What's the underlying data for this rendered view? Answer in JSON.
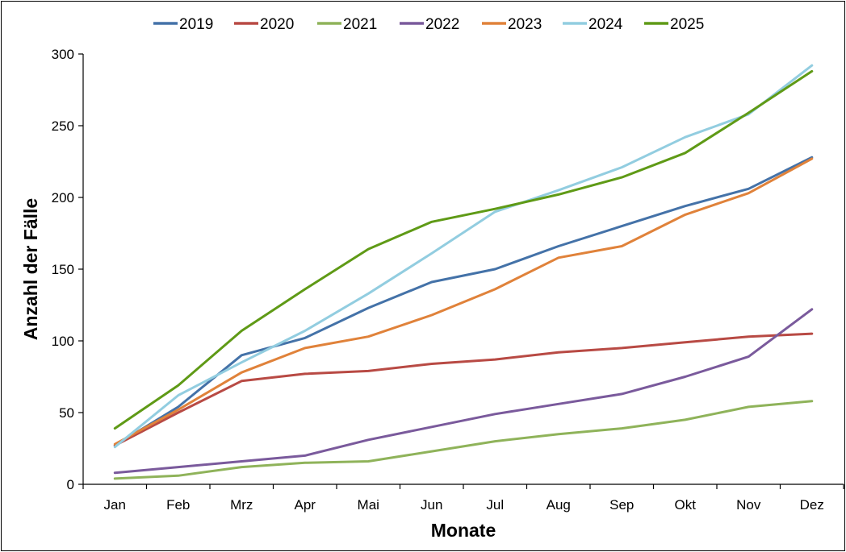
{
  "chart_data": {
    "type": "line",
    "title": "",
    "xlabel": "Monate",
    "ylabel": "Anzahl der Fälle",
    "ylim": [
      0,
      300
    ],
    "yticks": [
      0,
      50,
      100,
      150,
      200,
      250,
      300
    ],
    "grid": false,
    "legend_position": "top",
    "categories": [
      "Jan",
      "Feb",
      "Mrz",
      "Apr",
      "Mai",
      "Jun",
      "Jul",
      "Aug",
      "Sep",
      "Okt",
      "Nov",
      "Dez"
    ],
    "series": [
      {
        "name": "2019",
        "color": "#4472a8",
        "values": [
          27,
          54,
          90,
          102,
          123,
          141,
          150,
          166,
          180,
          194,
          206,
          228
        ]
      },
      {
        "name": "2020",
        "color": "#b84a44",
        "values": [
          27,
          50,
          72,
          77,
          79,
          84,
          87,
          92,
          95,
          99,
          103,
          105
        ]
      },
      {
        "name": "2021",
        "color": "#8fb35a",
        "values": [
          4,
          6,
          12,
          15,
          16,
          23,
          30,
          35,
          39,
          45,
          54,
          58
        ]
      },
      {
        "name": "2022",
        "color": "#7a5a9c",
        "values": [
          8,
          12,
          16,
          20,
          31,
          40,
          49,
          56,
          63,
          75,
          89,
          122
        ]
      },
      {
        "name": "2023",
        "color": "#e0823a",
        "values": [
          28,
          52,
          78,
          95,
          103,
          118,
          136,
          158,
          166,
          188,
          203,
          227
        ]
      },
      {
        "name": "2024",
        "color": "#92cde0",
        "values": [
          26,
          62,
          85,
          107,
          133,
          161,
          190,
          205,
          221,
          242,
          258,
          292
        ]
      },
      {
        "name": "2025",
        "color": "#5f9a16",
        "values": [
          39,
          69,
          107,
          136,
          164,
          183,
          192,
          202,
          214,
          231,
          259,
          288
        ]
      }
    ]
  }
}
